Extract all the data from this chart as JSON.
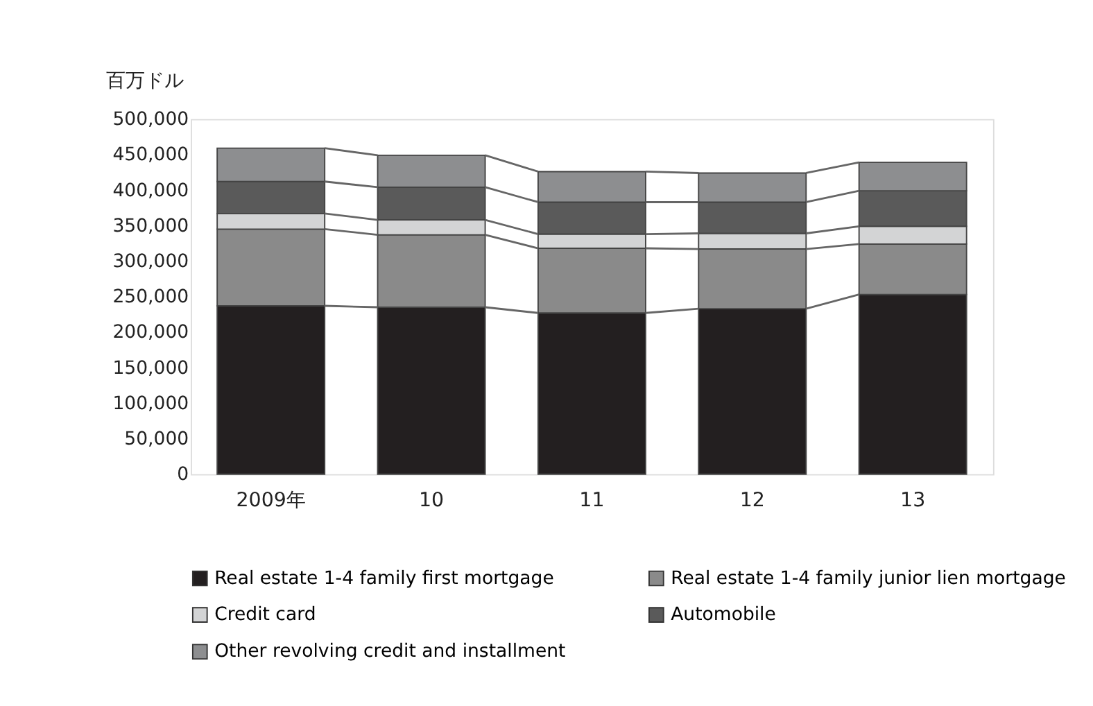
{
  "chart_data": {
    "type": "bar",
    "stacked": true,
    "ylabel": "百万ドル",
    "categories": [
      "2009年",
      "10",
      "11",
      "12",
      "13"
    ],
    "series": [
      {
        "name": "Real estate 1-4 family first mortgage",
        "color": "#231f20",
        "values": [
          237000,
          235000,
          227000,
          233000,
          253000
        ]
      },
      {
        "name": "Real estate 1-4 family junior lien mortgage",
        "color": "#8a8a8a",
        "values": [
          108000,
          102000,
          91000,
          84000,
          71000
        ]
      },
      {
        "name": "Credit card",
        "color": "#d3d4d5",
        "values": [
          22000,
          21000,
          20000,
          22000,
          25000
        ]
      },
      {
        "name": "Automobile",
        "color": "#5a5a5a",
        "values": [
          45000,
          46000,
          45000,
          44000,
          50000
        ]
      },
      {
        "name": "Other revolving credit and installment",
        "color": "#8d8e90",
        "values": [
          47000,
          45000,
          43000,
          41000,
          40000
        ]
      }
    ],
    "ylim": [
      0,
      500000
    ],
    "yticks": [
      0,
      {
        "value": 50000,
        "label": "50,000"
      },
      {
        "value": 100000,
        "label": "100,000"
      },
      {
        "value": 150000,
        "label": "150,000"
      },
      {
        "value": 200000,
        "label": "200,000"
      },
      {
        "value": 250000,
        "label": "250,000"
      },
      {
        "value": 300000,
        "label": "300,000"
      },
      {
        "value": 350000,
        "label": "350,000"
      },
      {
        "value": 400000,
        "label": "400,000"
      },
      {
        "value": 450000,
        "label": "450,000"
      },
      {
        "value": 500000,
        "label": "500,000"
      }
    ],
    "grid": false,
    "legend": "bottom"
  }
}
